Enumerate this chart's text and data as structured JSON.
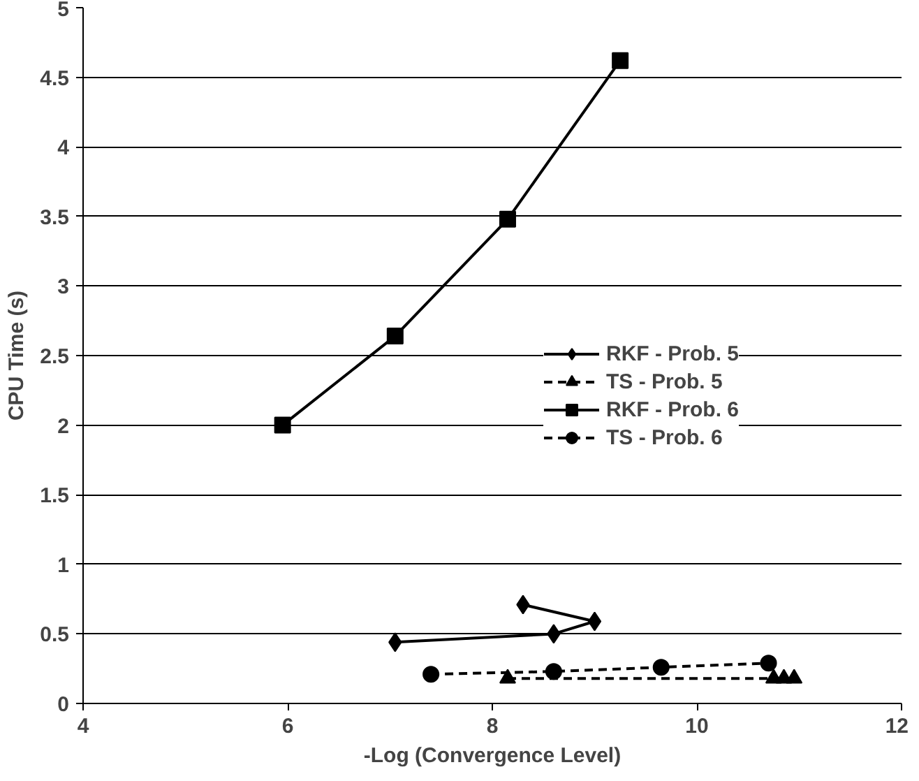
{
  "chart_data": {
    "type": "line",
    "xlabel": "-Log (Convergence Level)",
    "ylabel": "CPU Time (s)",
    "xlim": [
      4,
      12
    ],
    "ylim": [
      0,
      5
    ],
    "xticks": [
      4,
      6,
      8,
      10,
      12
    ],
    "yticks": [
      0,
      0.5,
      1,
      1.5,
      2,
      2.5,
      3,
      3.5,
      4,
      4.5,
      5
    ],
    "grid": "y",
    "legend": "right",
    "series": [
      {
        "name": "RKF - Prob. 5",
        "color": "#000000",
        "marker": "diamond",
        "line_style": "solid",
        "x": [
          7.05,
          8.6,
          9.0,
          8.3
        ],
        "values": [
          0.44,
          0.5,
          0.59,
          0.71
        ]
      },
      {
        "name": "TS - Prob. 5",
        "color": "#000000",
        "marker": "triangle",
        "line_style": "dashed",
        "x": [
          8.15,
          10.75,
          10.85,
          10.95
        ],
        "values": [
          0.18,
          0.18,
          0.18,
          0.18
        ]
      },
      {
        "name": "RKF - Prob. 6",
        "color": "#000000",
        "marker": "square",
        "line_style": "solid",
        "x": [
          5.95,
          7.05,
          8.15,
          9.25
        ],
        "values": [
          2.0,
          2.64,
          3.48,
          4.62
        ]
      },
      {
        "name": "TS - Prob. 6",
        "color": "#000000",
        "marker": "circle",
        "line_style": "dashed",
        "x": [
          7.4,
          8.6,
          9.65,
          10.7
        ],
        "values": [
          0.21,
          0.23,
          0.26,
          0.29
        ]
      }
    ]
  }
}
